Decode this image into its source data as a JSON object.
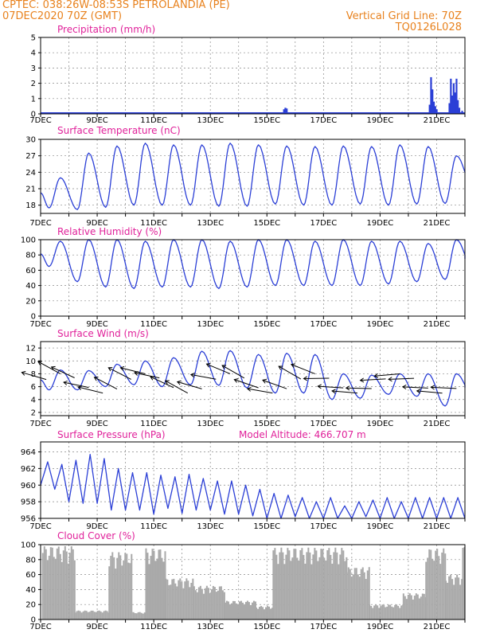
{
  "header": {
    "line1": "CPTEC:   038:26W-08:53S   PETROLANDIA (PE)",
    "line2": "07DEC2020 70Z (GMT)",
    "grid_note": "Vertical Grid Line: 70Z",
    "code": "TQ0126L028"
  },
  "colors": {
    "title": "#e0219a",
    "header": "#e8821e",
    "line": "#2b3fd6",
    "cloud": "#a9a9a9"
  },
  "x_ticks": [
    "7DEC",
    "9DEC",
    "11DEC",
    "13DEC",
    "15DEC",
    "17DEC",
    "19DEC",
    "21DEC"
  ],
  "chart_data": [
    {
      "type": "bar",
      "title": "Precipitation (mm/h)",
      "yticks": [
        "0",
        "1",
        "2",
        "3",
        "4",
        "5"
      ],
      "ylim": [
        0,
        5
      ],
      "grid": true,
      "x_range_days": [
        7,
        22
      ],
      "bars": [
        {
          "x": 15.6,
          "v": 0.3
        },
        {
          "x": 15.65,
          "v": 0.4
        },
        {
          "x": 15.7,
          "v": 0.35
        },
        {
          "x": 20.75,
          "v": 0.6
        },
        {
          "x": 20.8,
          "v": 2.4
        },
        {
          "x": 20.85,
          "v": 1.6
        },
        {
          "x": 20.9,
          "v": 0.8
        },
        {
          "x": 20.95,
          "v": 0.5
        },
        {
          "x": 21.0,
          "v": 0.3
        },
        {
          "x": 21.45,
          "v": 0.7
        },
        {
          "x": 21.5,
          "v": 2.3
        },
        {
          "x": 21.55,
          "v": 1.2
        },
        {
          "x": 21.6,
          "v": 2.0
        },
        {
          "x": 21.65,
          "v": 1.4
        },
        {
          "x": 21.7,
          "v": 2.3
        },
        {
          "x": 21.75,
          "v": 0.9
        },
        {
          "x": 21.8,
          "v": 0.4
        },
        {
          "x": 21.9,
          "v": 0.2
        }
      ]
    },
    {
      "type": "line",
      "title": "Surface Temperature (nC)",
      "yticks": [
        "18",
        "21",
        "24",
        "27",
        "30"
      ],
      "ylim": [
        16.5,
        30
      ],
      "grid": true,
      "x_range_days": [
        7,
        22
      ],
      "daily_max": [
        23.0,
        27.5,
        28.8,
        29.3,
        29.0,
        29.0,
        29.3,
        29.0,
        28.8,
        28.7,
        28.8,
        28.7,
        29.0,
        28.7,
        27.0,
        26.8
      ],
      "daily_min": [
        17.5,
        17.2,
        17.6,
        18.0,
        18.0,
        18.0,
        17.8,
        17.8,
        18.2,
        18.0,
        18.0,
        18.2,
        18.0,
        18.2,
        18.3,
        21.0
      ]
    },
    {
      "type": "line",
      "title": "Relative Humidity (%)",
      "yticks": [
        "0",
        "20",
        "40",
        "60",
        "80",
        "100"
      ],
      "ylim": [
        0,
        100
      ],
      "grid": true,
      "x_range_days": [
        7,
        22
      ],
      "daily_max": [
        98,
        100,
        100,
        98,
        100,
        100,
        98,
        100,
        100,
        98,
        100,
        98,
        98,
        95,
        100,
        90
      ],
      "daily_min": [
        65,
        45,
        38,
        36,
        38,
        38,
        36,
        38,
        40,
        40,
        40,
        40,
        42,
        45,
        48,
        60
      ]
    },
    {
      "type": "line",
      "title": "Surface Wind (m/s)",
      "yticks": [
        "2",
        "4",
        "6",
        "8",
        "10",
        "12"
      ],
      "ylim": [
        1.5,
        13
      ],
      "grid": true,
      "x_range_days": [
        7,
        22
      ],
      "daily_max": [
        8.6,
        8.5,
        9.5,
        10.0,
        10.5,
        11.5,
        11.6,
        11.0,
        11.2,
        11.0,
        8.0,
        7.8,
        8.0,
        8.0,
        8.0,
        7.2
      ],
      "daily_min": [
        5.5,
        5.5,
        6.0,
        6.3,
        6.0,
        6.3,
        6.2,
        5.8,
        5.0,
        5.0,
        4.0,
        4.2,
        4.8,
        4.5,
        3.0,
        4.5
      ]
    },
    {
      "type": "line",
      "title": "Surface Pressure (hPa)",
      "annotation": "Model Altitude: 466.707 m",
      "yticks": [
        "956",
        "958",
        "960",
        "962",
        "964"
      ],
      "ylim": [
        956,
        965.2
      ],
      "grid": true,
      "x_range_days": [
        7,
        22
      ],
      "series": [
        960.0,
        962.8,
        959.5,
        962.5,
        958.0,
        963.0,
        957.8,
        963.7,
        957.8,
        963.2,
        957.0,
        962.0,
        957.0,
        961.5,
        957.0,
        961.5,
        956.5,
        961.2,
        957.2,
        961.0,
        956.6,
        961.3,
        957.0,
        960.8,
        957.0,
        960.5,
        956.5,
        960.5,
        956.5,
        960.0,
        956.3,
        959.5,
        956.0,
        959.0,
        956.0,
        958.8,
        956.2,
        958.5,
        956.0,
        958.0,
        956.0,
        958.5,
        956.0,
        957.5,
        956.0,
        958.0,
        956.2,
        958.2,
        956.0,
        958.5,
        956.0,
        958.0,
        956.0,
        958.5,
        956.0,
        958.5,
        956.0,
        958.5,
        956.0,
        958.5,
        956.0
      ]
    },
    {
      "type": "bar",
      "title": "Cloud Cover (%)",
      "yticks": [
        "0",
        "20",
        "40",
        "60",
        "80",
        "100"
      ],
      "ylim": [
        0,
        100
      ],
      "grid": true,
      "x_range_days": [
        7,
        22
      ],
      "spans": [
        {
          "from": 7.05,
          "to": 8.2,
          "v": 98
        },
        {
          "from": 8.2,
          "to": 9.4,
          "v": 12
        },
        {
          "from": 9.4,
          "to": 10.2,
          "v": 90
        },
        {
          "from": 10.2,
          "to": 10.7,
          "v": 10
        },
        {
          "from": 10.7,
          "to": 11.4,
          "v": 95
        },
        {
          "from": 11.4,
          "to": 12.4,
          "v": 55
        },
        {
          "from": 12.4,
          "to": 13.5,
          "v": 45
        },
        {
          "from": 13.5,
          "to": 14.6,
          "v": 25
        },
        {
          "from": 14.6,
          "to": 15.2,
          "v": 18
        },
        {
          "from": 15.2,
          "to": 17.0,
          "v": 96
        },
        {
          "from": 17.0,
          "to": 17.8,
          "v": 96
        },
        {
          "from": 17.8,
          "to": 18.6,
          "v": 70
        },
        {
          "from": 18.6,
          "to": 19.8,
          "v": 20
        },
        {
          "from": 19.8,
          "to": 20.6,
          "v": 35
        },
        {
          "from": 20.6,
          "to": 21.3,
          "v": 95
        },
        {
          "from": 21.3,
          "to": 21.9,
          "v": 60
        },
        {
          "from": 21.9,
          "to": 22.0,
          "v": 98
        }
      ]
    }
  ]
}
